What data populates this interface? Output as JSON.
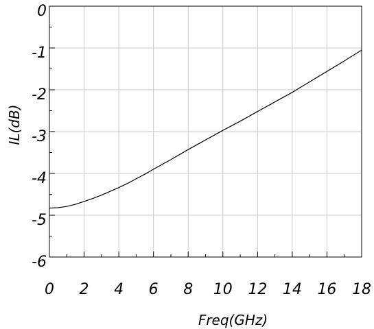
{
  "chart_data": {
    "type": "line",
    "xlabel": "Freq(GHz)",
    "ylabel": "IL(dB)",
    "xlim": [
      0,
      18
    ],
    "ylim": [
      -6,
      0
    ],
    "grid": true,
    "x_ticks": [
      "0",
      "2",
      "4",
      "6",
      "8",
      "10",
      "12",
      "14",
      "16",
      "18"
    ],
    "y_ticks": [
      "0",
      "-1",
      "-2",
      "-3",
      "-4",
      "-5",
      "-6"
    ],
    "series": [
      {
        "x": [
          0,
          0.5,
          1,
          1.5,
          2,
          2.5,
          3,
          3.5,
          4,
          4.5,
          5,
          5.5,
          6,
          7,
          8,
          9,
          10,
          11,
          12,
          13,
          14,
          15,
          16,
          17,
          18
        ],
        "values": [
          -4.83,
          -4.82,
          -4.79,
          -4.74,
          -4.67,
          -4.6,
          -4.52,
          -4.43,
          -4.34,
          -4.24,
          -4.13,
          -4.02,
          -3.9,
          -3.67,
          -3.43,
          -3.2,
          -2.97,
          -2.75,
          -2.52,
          -2.29,
          -2.06,
          -1.81,
          -1.56,
          -1.31,
          -1.05
        ],
        "color": "#000000"
      }
    ]
  }
}
